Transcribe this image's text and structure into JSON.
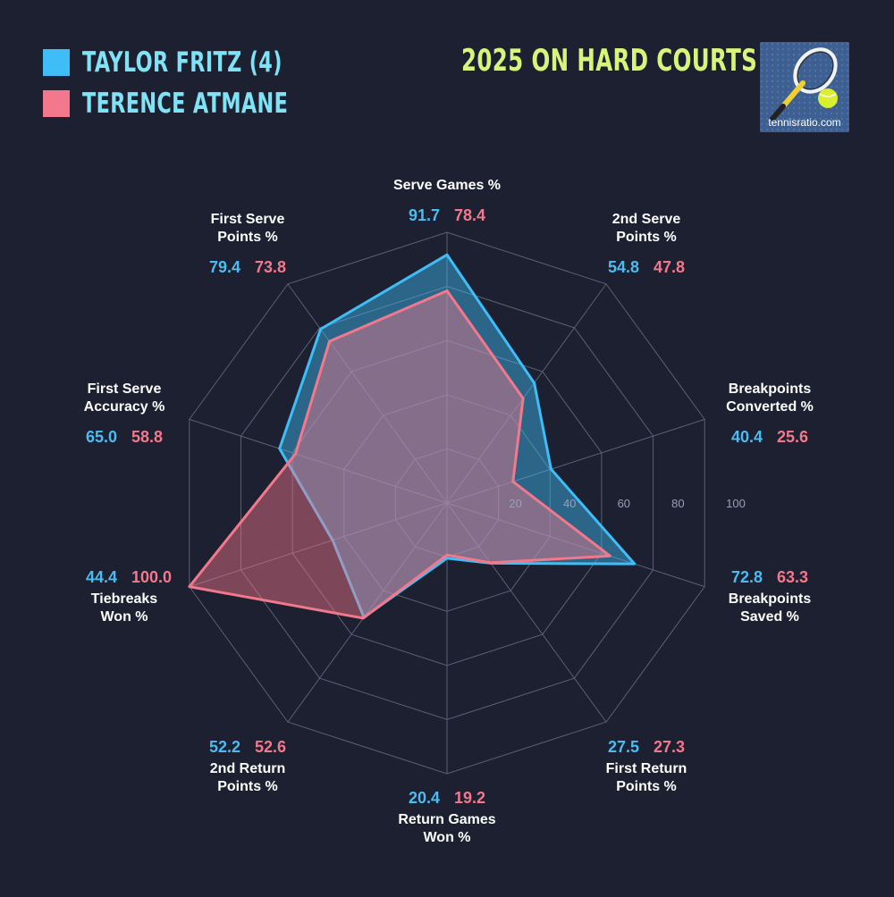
{
  "header": {
    "title": "2025 ON HARD COURTS",
    "logo_text": "tennisratio.com"
  },
  "legend": [
    {
      "name": "TAYLOR FRITZ (4)",
      "color": "#3fbdf6"
    },
    {
      "name": "TERENCE ATMANE",
      "color": "#f4788b"
    }
  ],
  "chart_data": {
    "type": "radar",
    "rlim": [
      0,
      100
    ],
    "ticks": [
      "20",
      "40",
      "60",
      "80",
      "100"
    ],
    "grid": true,
    "axes": [
      {
        "label": [
          "Serve Games %"
        ],
        "a": "91.7",
        "b": "78.4"
      },
      {
        "label": [
          "2nd Serve",
          "Points %"
        ],
        "a": "54.8",
        "b": "47.8"
      },
      {
        "label": [
          "Breakpoints",
          "Converted %"
        ],
        "a": "40.4",
        "b": "25.6"
      },
      {
        "label": [
          "Breakpoints",
          "Saved %"
        ],
        "a": "72.8",
        "b": "63.3"
      },
      {
        "label": [
          "First Return",
          "Points %"
        ],
        "a": "27.5",
        "b": "27.3"
      },
      {
        "label": [
          "Return Games",
          "Won %"
        ],
        "a": "20.4",
        "b": "19.2"
      },
      {
        "label": [
          "2nd Return",
          "Points %"
        ],
        "a": "52.2",
        "b": "52.6"
      },
      {
        "label": [
          "Tiebreaks",
          "Won %"
        ],
        "a": "44.4",
        "b": "100.0"
      },
      {
        "label": [
          "First Serve",
          "Accuracy %"
        ],
        "a": "65.0",
        "b": "58.8"
      },
      {
        "label": [
          "First Serve",
          "Points %"
        ],
        "a": "79.4",
        "b": "73.8"
      }
    ],
    "series": [
      {
        "name": "TAYLOR FRITZ (4)",
        "values": [
          91.7,
          54.8,
          40.4,
          72.8,
          27.5,
          20.4,
          52.2,
          44.4,
          65.0,
          79.4
        ],
        "color": "#3fbdf6"
      },
      {
        "name": "TERENCE ATMANE",
        "values": [
          78.4,
          47.8,
          25.6,
          63.3,
          27.3,
          19.2,
          52.6,
          100.0,
          58.8,
          73.8
        ],
        "color": "#f4788b"
      }
    ]
  }
}
